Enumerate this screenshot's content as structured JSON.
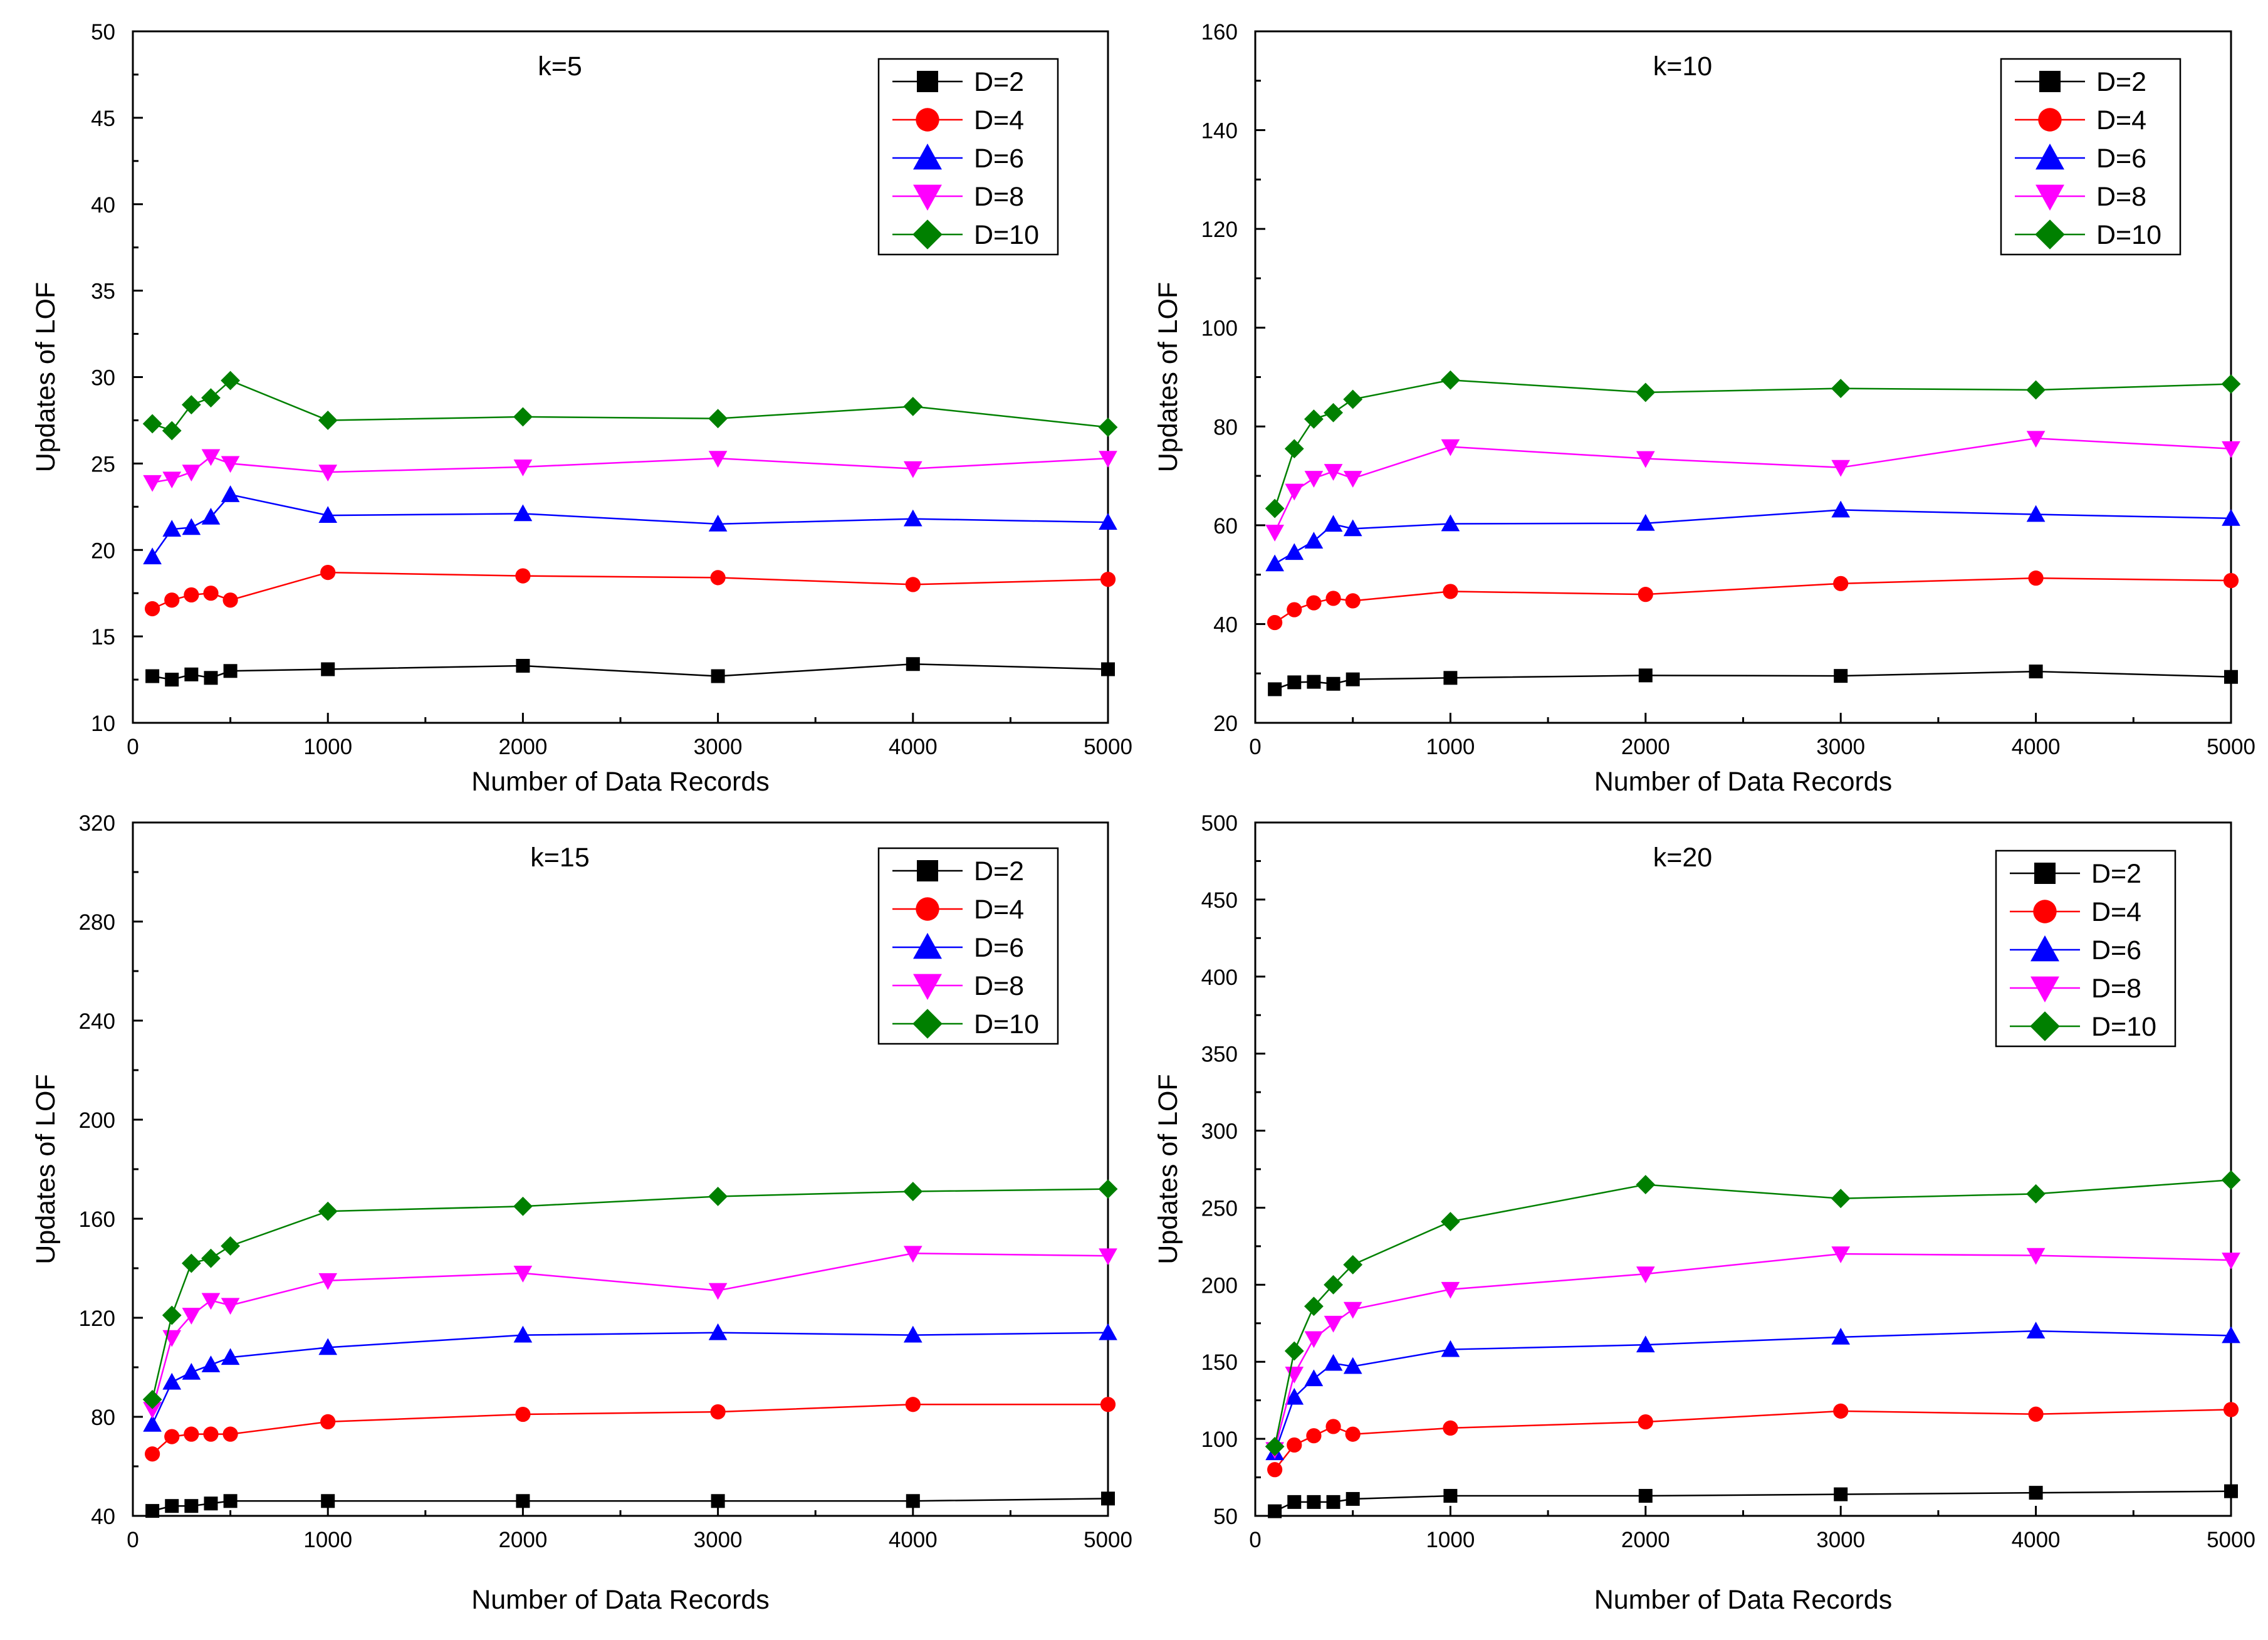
{
  "figure": {
    "panel_count": 4
  },
  "chart_data": [
    {
      "type": "line",
      "title": "k=5",
      "xlabel": "Number of Data Records",
      "ylabel": "Updates of LOF",
      "xlim": [
        0,
        5000
      ],
      "ylim": [
        10,
        50
      ],
      "xticks": [
        0,
        1000,
        2000,
        3000,
        4000,
        5000
      ],
      "yticks": [
        10,
        15,
        20,
        25,
        30,
        35,
        40,
        45,
        50
      ],
      "x": [
        100,
        200,
        300,
        400,
        500,
        1000,
        2000,
        3000,
        4000,
        5000
      ],
      "legend_position": "top-right",
      "series": [
        {
          "name": "D=2",
          "marker": "square",
          "color": "#000000",
          "values": [
            12.7,
            12.5,
            12.8,
            12.6,
            13.0,
            13.1,
            13.3,
            12.7,
            13.4,
            13.1
          ]
        },
        {
          "name": "D=4",
          "marker": "circle",
          "color": "#ff0000",
          "values": [
            16.6,
            17.1,
            17.4,
            17.5,
            17.1,
            18.7,
            18.5,
            18.4,
            18.0,
            18.3
          ]
        },
        {
          "name": "D=6",
          "marker": "triangle-up",
          "color": "#0000ff",
          "values": [
            19.6,
            21.2,
            21.3,
            21.9,
            23.2,
            22.0,
            22.1,
            21.5,
            21.8,
            21.6
          ]
        },
        {
          "name": "D=8",
          "marker": "triangle-down",
          "color": "#ff00ff",
          "values": [
            23.9,
            24.1,
            24.5,
            25.4,
            25.0,
            24.5,
            24.8,
            25.3,
            24.7,
            25.3
          ]
        },
        {
          "name": "D=10",
          "marker": "diamond",
          "color": "#008000",
          "values": [
            27.3,
            26.9,
            28.4,
            28.8,
            29.8,
            27.5,
            27.7,
            27.6,
            28.3,
            27.1
          ]
        }
      ]
    },
    {
      "type": "line",
      "title": "k=10",
      "xlabel": "Number of Data Records",
      "ylabel": "Updates of LOF",
      "xlim": [
        0,
        5000
      ],
      "ylim": [
        20,
        160
      ],
      "xticks": [
        0,
        1000,
        2000,
        3000,
        4000,
        5000
      ],
      "yticks": [
        20,
        40,
        60,
        80,
        100,
        120,
        140,
        160
      ],
      "x": [
        100,
        200,
        300,
        400,
        500,
        1000,
        2000,
        3000,
        4000,
        5000
      ],
      "legend_position": "top-right",
      "series": [
        {
          "name": "D=2",
          "marker": "square",
          "color": "#000000",
          "values": [
            26.8,
            28.2,
            28.3,
            27.9,
            28.8,
            29.1,
            29.6,
            29.5,
            30.4,
            29.3
          ]
        },
        {
          "name": "D=4",
          "marker": "circle",
          "color": "#ff0000",
          "values": [
            40.3,
            42.9,
            44.3,
            45.2,
            44.7,
            46.6,
            46.0,
            48.2,
            49.3,
            48.8
          ]
        },
        {
          "name": "D=6",
          "marker": "triangle-up",
          "color": "#0000ff",
          "values": [
            52.2,
            54.5,
            56.8,
            60.2,
            59.3,
            60.3,
            60.4,
            63.1,
            62.2,
            61.4
          ]
        },
        {
          "name": "D=8",
          "marker": "triangle-down",
          "color": "#ff00ff",
          "values": [
            58.6,
            66.9,
            69.5,
            70.9,
            69.5,
            75.9,
            73.5,
            71.7,
            77.6,
            75.5
          ]
        },
        {
          "name": "D=10",
          "marker": "diamond",
          "color": "#008000",
          "values": [
            63.4,
            75.5,
            81.5,
            82.8,
            85.5,
            89.4,
            86.9,
            87.7,
            87.4,
            88.6
          ]
        }
      ]
    },
    {
      "type": "line",
      "title": "k=15",
      "xlabel": "Number of Data Records",
      "ylabel": "Updates of LOF",
      "xlim": [
        0,
        5000
      ],
      "ylim": [
        40,
        320
      ],
      "xticks": [
        0,
        1000,
        2000,
        3000,
        4000,
        5000
      ],
      "yticks": [
        40,
        80,
        120,
        160,
        200,
        240,
        280,
        320
      ],
      "x": [
        100,
        200,
        300,
        400,
        500,
        1000,
        2000,
        3000,
        4000,
        5000
      ],
      "legend_position": "top-right",
      "series": [
        {
          "name": "D=2",
          "marker": "square",
          "color": "#000000",
          "values": [
            42,
            44,
            44,
            45,
            46,
            46,
            46,
            46,
            46,
            47
          ]
        },
        {
          "name": "D=4",
          "marker": "circle",
          "color": "#ff0000",
          "values": [
            65,
            72,
            73,
            73,
            73,
            78,
            81,
            82,
            85,
            85
          ]
        },
        {
          "name": "D=6",
          "marker": "triangle-up",
          "color": "#0000ff",
          "values": [
            77,
            94,
            98,
            101,
            104,
            108,
            113,
            114,
            113,
            114
          ]
        },
        {
          "name": "D=8",
          "marker": "triangle-down",
          "color": "#ff00ff",
          "values": [
            83,
            112,
            121,
            127,
            125,
            135,
            138,
            131,
            146,
            145
          ]
        },
        {
          "name": "D=10",
          "marker": "diamond",
          "color": "#008000",
          "values": [
            87,
            121,
            142,
            144,
            149,
            163,
            165,
            169,
            171,
            172
          ]
        }
      ]
    },
    {
      "type": "line",
      "title": "k=20",
      "xlabel": "Number of Data Records",
      "ylabel": "Updates of LOF",
      "xlim": [
        0,
        5000
      ],
      "ylim": [
        50,
        500
      ],
      "xticks": [
        0,
        1000,
        2000,
        3000,
        4000,
        5000
      ],
      "yticks": [
        50,
        100,
        150,
        200,
        250,
        300,
        350,
        400,
        450,
        500
      ],
      "x": [
        100,
        200,
        300,
        400,
        500,
        1000,
        2000,
        3000,
        4000,
        5000
      ],
      "legend_position": "top-right",
      "series": [
        {
          "name": "D=2",
          "marker": "square",
          "color": "#000000",
          "values": [
            53,
            59,
            59,
            59,
            61,
            63,
            63,
            64,
            65,
            66
          ]
        },
        {
          "name": "D=4",
          "marker": "circle",
          "color": "#ff0000",
          "values": [
            80,
            96,
            102,
            108,
            103,
            107,
            111,
            118,
            116,
            119
          ]
        },
        {
          "name": "D=6",
          "marker": "triangle-up",
          "color": "#0000ff",
          "values": [
            91,
            127,
            139,
            149,
            147,
            158,
            161,
            166,
            170,
            167
          ]
        },
        {
          "name": "D=8",
          "marker": "triangle-down",
          "color": "#ff00ff",
          "values": [
            93,
            142,
            165,
            175,
            184,
            197,
            207,
            220,
            219,
            216
          ]
        },
        {
          "name": "D=10",
          "marker": "diamond",
          "color": "#008000",
          "values": [
            95,
            157,
            186,
            200,
            213,
            241,
            265,
            256,
            259,
            268
          ]
        }
      ]
    }
  ]
}
